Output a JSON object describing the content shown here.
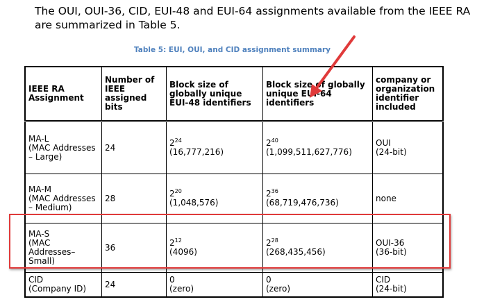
{
  "intro_text": "The OUI, OUI-36, CID, EUI-48 and EUI-64 assignments available from the IEEE RA are summarized in Table 5.",
  "caption": "Table 5: EUI, OUI, and CID assignment summary",
  "headers": [
    "IEEE RA Assignment",
    "Number of IEEE assigned bits",
    "Block size of globally unique EUI-48 identifiers",
    "Block size of globally unique EUI-64 identifiers",
    "company or organization identifier included"
  ],
  "rows": [
    {
      "assignment": [
        "MA-L",
        "(MAC Addresses",
        "– Large)"
      ],
      "bits": "24",
      "eui48_base": "2",
      "eui48_exp": "24",
      "eui48_value": "(16,777,216)",
      "eui64_base": "2",
      "eui64_exp": "40",
      "eui64_value": "(1,099,511,627,776)",
      "company": [
        "OUI",
        "(24-bit)"
      ]
    },
    {
      "assignment": [
        "MA-M",
        "(MAC Addresses",
        "– Medium)"
      ],
      "bits": "28",
      "eui48_base": "2",
      "eui48_exp": "20",
      "eui48_value": "(1,048,576)",
      "eui64_base": "2",
      "eui64_exp": "36",
      "eui64_value": "(68,719,476,736)",
      "company": [
        "none"
      ]
    },
    {
      "assignment": [
        "MA-S",
        "(MAC",
        "Addresses–",
        "Small)"
      ],
      "bits": "36",
      "eui48_base": "2",
      "eui48_exp": "12",
      "eui48_value": "(4096)",
      "eui64_base": "2",
      "eui64_exp": "28",
      "eui64_value": "(268,435,456)",
      "company": [
        "OUI-36",
        "(36-bit)"
      ]
    },
    {
      "assignment": [
        "CID",
        "(Company ID)"
      ],
      "bits": "24",
      "eui48_base": "0",
      "eui48_exp": "",
      "eui48_value": "(zero)",
      "eui64_base": "0",
      "eui64_exp": "",
      "eui64_value": "(zero)",
      "company": [
        "CID",
        "(24-bit)"
      ]
    }
  ],
  "colors": {
    "caption": "#4f81bd",
    "annotation": "#e03a3a"
  }
}
